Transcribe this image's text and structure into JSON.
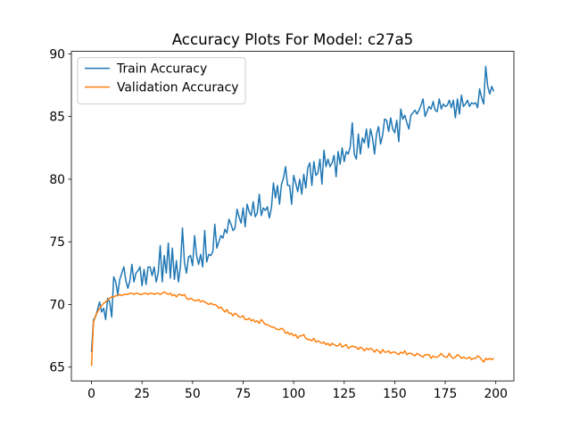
{
  "chart_data": {
    "type": "line",
    "title": "Accuracy Plots For Model: c27a5",
    "x": [
      0,
      1,
      2,
      3,
      4,
      5,
      6,
      7,
      8,
      9,
      10,
      11,
      12,
      13,
      14,
      15,
      16,
      17,
      18,
      19,
      20,
      21,
      22,
      23,
      24,
      25,
      26,
      27,
      28,
      29,
      30,
      31,
      32,
      33,
      34,
      35,
      36,
      37,
      38,
      39,
      40,
      41,
      42,
      43,
      44,
      45,
      46,
      47,
      48,
      49,
      50,
      51,
      52,
      53,
      54,
      55,
      56,
      57,
      58,
      59,
      60,
      61,
      62,
      63,
      64,
      65,
      66,
      67,
      68,
      69,
      70,
      71,
      72,
      73,
      74,
      75,
      76,
      77,
      78,
      79,
      80,
      81,
      82,
      83,
      84,
      85,
      86,
      87,
      88,
      89,
      90,
      91,
      92,
      93,
      94,
      95,
      96,
      97,
      98,
      99,
      100,
      101,
      102,
      103,
      104,
      105,
      106,
      107,
      108,
      109,
      110,
      111,
      112,
      113,
      114,
      115,
      116,
      117,
      118,
      119,
      120,
      121,
      122,
      123,
      124,
      125,
      126,
      127,
      128,
      129,
      130,
      131,
      132,
      133,
      134,
      135,
      136,
      137,
      138,
      139,
      140,
      141,
      142,
      143,
      144,
      145,
      146,
      147,
      148,
      149,
      150,
      151,
      152,
      153,
      154,
      155,
      156,
      157,
      158,
      159,
      160,
      161,
      162,
      163,
      164,
      165,
      166,
      167,
      168,
      169,
      170,
      171,
      172,
      173,
      174,
      175,
      176,
      177,
      178,
      179,
      180,
      181,
      182,
      183,
      184,
      185,
      186,
      187,
      188,
      189,
      190,
      191,
      192,
      193,
      194,
      195,
      196,
      197,
      198,
      199
    ],
    "series": [
      {
        "name": "Train Accuracy",
        "color": "#1f77b4",
        "values": [
          66.2,
          68.8,
          69.0,
          69.6,
          70.2,
          69.4,
          69.7,
          68.8,
          70.5,
          70.2,
          69.0,
          72.2,
          71.8,
          70.8,
          72.0,
          72.5,
          73.0,
          71.9,
          71.3,
          71.9,
          73.2,
          71.8,
          72.5,
          72.7,
          73.0,
          71.5,
          72.8,
          71.6,
          73.0,
          73.0,
          72.3,
          73.0,
          71.8,
          72.5,
          74.7,
          71.8,
          73.9,
          72.5,
          74.9,
          72.1,
          74.5,
          72.0,
          73.5,
          71.8,
          73.0,
          76.1,
          73.3,
          72.5,
          73.8,
          73.9,
          73.1,
          75.5,
          73.9,
          73.2,
          74.0,
          73.0,
          75.9,
          73.4,
          74.0,
          73.9,
          74.2,
          76.4,
          74.5,
          75.0,
          75.5,
          75.3,
          76.0,
          75.7,
          76.8,
          76.4,
          75.9,
          76.1,
          77.6,
          77.0,
          76.5,
          77.7,
          76.2,
          78.0,
          77.4,
          77.1,
          78.2,
          77.0,
          77.3,
          78.8,
          77.1,
          77.7,
          77.5,
          77.8,
          76.9,
          77.7,
          79.7,
          78.5,
          79.5,
          78.0,
          79.6,
          80.1,
          81.0,
          79.5,
          79.5,
          78.0,
          80.3,
          79.7,
          79.0,
          80.0,
          78.8,
          80.4,
          79.3,
          80.9,
          81.3,
          79.5,
          81.4,
          80.3,
          80.5,
          81.6,
          79.6,
          82.3,
          81.0,
          81.6,
          81.0,
          81.3,
          81.9,
          80.2,
          82.2,
          81.2,
          82.5,
          81.4,
          82.2,
          82.0,
          82.6,
          84.5,
          82.0,
          81.6,
          83.6,
          82.0,
          83.3,
          82.9,
          84.0,
          82.5,
          84.0,
          83.3,
          82.0,
          83.6,
          84.2,
          82.8,
          83.5,
          84.8,
          84.7,
          83.8,
          84.9,
          84.0,
          83.7,
          84.7,
          83.0,
          85.6,
          84.8,
          85.1,
          84.5,
          84.0,
          85.1,
          85.3,
          85.5,
          85.2,
          85.5,
          85.9,
          86.4,
          85.0,
          85.4,
          85.8,
          85.6,
          86.2,
          85.5,
          85.4,
          86.4,
          85.6,
          86.0,
          85.8,
          85.9,
          86.3,
          85.7,
          86.3,
          84.9,
          86.4,
          85.2,
          86.7,
          85.8,
          86.0,
          86.3,
          85.8,
          86.1,
          86.0,
          86.1,
          85.7,
          87.2,
          86.5,
          86.0,
          89.0,
          87.4,
          86.8,
          87.4,
          87.0
        ]
      },
      {
        "name": "Validation Accuracy",
        "color": "#ff7f0e",
        "values": [
          65.1,
          68.6,
          69.1,
          69.4,
          69.7,
          69.9,
          70.1,
          70.2,
          70.4,
          70.5,
          70.6,
          70.6,
          70.7,
          70.7,
          70.8,
          70.7,
          70.8,
          70.8,
          70.8,
          70.9,
          70.9,
          70.8,
          70.9,
          70.9,
          70.8,
          70.8,
          70.9,
          70.9,
          70.8,
          70.9,
          70.9,
          70.8,
          70.9,
          70.9,
          70.8,
          70.9,
          71.0,
          70.9,
          70.8,
          70.9,
          70.7,
          70.8,
          70.6,
          70.8,
          70.8,
          70.7,
          70.8,
          70.5,
          70.4,
          70.5,
          70.4,
          70.3,
          70.3,
          70.4,
          70.2,
          70.3,
          70.2,
          70.1,
          70.0,
          70.1,
          70.0,
          70.0,
          69.9,
          69.7,
          69.8,
          69.6,
          69.4,
          69.6,
          69.3,
          69.3,
          69.1,
          69.3,
          69.2,
          69.0,
          69.0,
          69.1,
          68.8,
          68.8,
          68.9,
          68.7,
          68.8,
          68.6,
          68.7,
          68.5,
          68.8,
          68.6,
          68.4,
          68.4,
          68.3,
          68.2,
          68.2,
          68.1,
          68.0,
          68.0,
          68.1,
          68.0,
          67.7,
          67.8,
          67.6,
          67.7,
          67.5,
          67.6,
          67.3,
          67.5,
          67.5,
          67.6,
          67.3,
          67.2,
          67.2,
          67.1,
          67.3,
          67.0,
          67.1,
          67.0,
          66.9,
          67.0,
          66.8,
          66.9,
          66.7,
          66.9,
          66.8,
          66.7,
          66.7,
          66.9,
          66.6,
          66.7,
          66.8,
          66.5,
          66.6,
          66.7,
          66.6,
          66.6,
          66.4,
          66.6,
          66.5,
          66.3,
          66.5,
          66.4,
          66.5,
          66.4,
          66.2,
          66.4,
          66.3,
          66.1,
          66.4,
          66.2,
          66.2,
          66.3,
          66.1,
          66.2,
          66.2,
          66.1,
          66.0,
          66.2,
          66.1,
          66.3,
          66.0,
          66.1,
          66.1,
          66.0,
          65.9,
          66.1,
          66.0,
          65.9,
          65.8,
          66.0,
          66.0,
          66.0,
          65.7,
          65.9,
          65.8,
          65.8,
          65.9,
          66.1,
          65.9,
          65.8,
          65.8,
          66.1,
          65.8,
          65.7,
          65.8,
          66.0,
          65.9,
          65.7,
          65.8,
          65.7,
          65.7,
          65.8,
          65.6,
          65.7,
          65.7,
          65.9,
          65.8,
          65.6,
          65.4,
          65.7,
          65.6,
          65.7,
          65.6,
          65.7
        ]
      }
    ],
    "xlim": [
      -9.95,
      208.95
    ],
    "ylim": [
      63.9,
      90.2
    ],
    "xticks": [
      0,
      25,
      50,
      75,
      100,
      125,
      150,
      175,
      200
    ],
    "yticks": [
      65,
      70,
      75,
      80,
      85,
      90
    ],
    "grid": false,
    "legend": "upper left"
  }
}
